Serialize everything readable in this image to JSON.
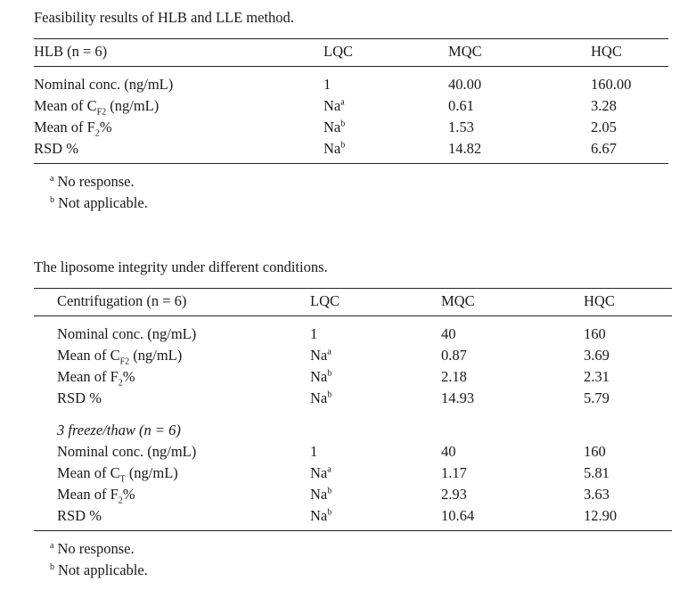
{
  "table1": {
    "caption": "Feasibility results of HLB and LLE method.",
    "headers": [
      "HLB (n = 6)",
      "LQC",
      "MQC",
      "HQC"
    ],
    "rows": [
      {
        "label": "Nominal conc. (ng/mL)",
        "lqc": "1",
        "mqc": "40.00",
        "hqc": "160.00"
      },
      {
        "label_pre": "Mean of C",
        "label_sub": "F2",
        "label_post": " (ng/mL)",
        "lqc": "Na",
        "lqc_note": "a",
        "mqc": "0.61",
        "hqc": "3.28"
      },
      {
        "label_pre": "Mean of F",
        "label_sub": "2",
        "label_post": "%",
        "lqc": "Na",
        "lqc_note": "b",
        "mqc": "1.53",
        "hqc": "2.05"
      },
      {
        "label": "RSD %",
        "lqc": "Na",
        "lqc_note": "b",
        "mqc": "14.82",
        "hqc": "6.67"
      }
    ],
    "notes": [
      {
        "mark": "a",
        "text": "No response."
      },
      {
        "mark": "b",
        "text": "Not applicable."
      }
    ]
  },
  "table2": {
    "caption": "The liposome integrity under different conditions.",
    "headers": [
      "Centrifugation (n = 6)",
      "LQC",
      "MQC",
      "HQC"
    ],
    "rows": [
      {
        "label": "Nominal conc. (ng/mL)",
        "lqc": "1",
        "mqc": "40",
        "hqc": "160"
      },
      {
        "label_pre": "Mean of C",
        "label_sub": "F2",
        "label_post": " (ng/mL)",
        "lqc": "Na",
        "lqc_note": "a",
        "mqc": "0.87",
        "hqc": "3.69"
      },
      {
        "label_pre": "Mean of F",
        "label_sub": "2",
        "label_post": "%",
        "lqc": "Na",
        "lqc_note": "b",
        "mqc": "2.18",
        "hqc": "2.31"
      },
      {
        "label": "RSD %",
        "lqc": "Na",
        "lqc_note": "b",
        "mqc": "14.93",
        "hqc": "5.79"
      }
    ],
    "section2_title": "3 freeze/thaw (n = 6)",
    "rows2": [
      {
        "label": "Nominal conc. (ng/mL)",
        "lqc": "1",
        "mqc": "40",
        "hqc": "160"
      },
      {
        "label_pre": "Mean of C",
        "label_sub": "T",
        "label_post": " (ng/mL)",
        "lqc": "Na",
        "lqc_note": "a",
        "mqc": "1.17",
        "hqc": "5.81"
      },
      {
        "label_pre": "Mean of F",
        "label_sub": "2",
        "label_post": "%",
        "lqc": "Na",
        "lqc_note": "b",
        "mqc": "2.93",
        "hqc": "3.63"
      },
      {
        "label": "RSD %",
        "lqc": "Na",
        "lqc_note": "b",
        "mqc": "10.64",
        "hqc": "12.90"
      }
    ],
    "notes": [
      {
        "mark": "a",
        "text": "No response."
      },
      {
        "mark": "b",
        "text": "Not applicable."
      }
    ]
  }
}
